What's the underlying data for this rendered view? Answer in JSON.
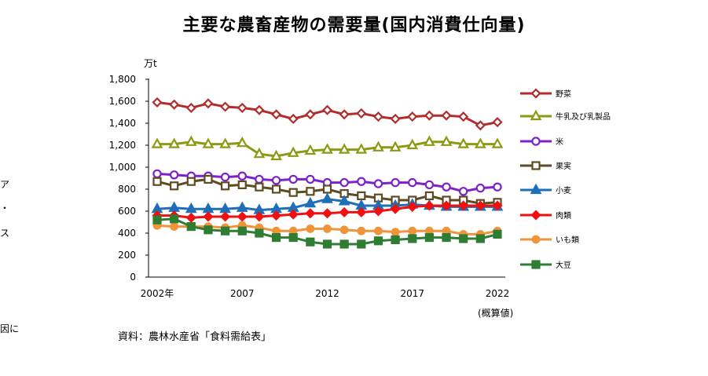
{
  "left_fragments": [
    "ア",
    "・",
    "ス",
    "因に"
  ],
  "chart_data": {
    "type": "line",
    "title": "主要な農畜産物の需要量(国内消費仕向量)",
    "ylabel": "万t",
    "ylim": [
      0,
      1800
    ],
    "yticks": [
      "0",
      "200",
      "400",
      "600",
      "800",
      "1,000",
      "1,200",
      "1,400",
      "1,600",
      "1,800"
    ],
    "x": [
      2002,
      2003,
      2004,
      2005,
      2006,
      2007,
      2008,
      2009,
      2010,
      2011,
      2012,
      2013,
      2014,
      2015,
      2016,
      2017,
      2018,
      2019,
      2020,
      2021,
      2022
    ],
    "xtick_labels": [
      "2002年",
      "2007",
      "2012",
      "2017",
      "2022"
    ],
    "x_note": "(概算値)",
    "grid": false,
    "legend": "right",
    "series": [
      {
        "name": "野菜",
        "color": "#B32B2B",
        "marker": "diamond",
        "filled": false,
        "values": [
          1590,
          1570,
          1540,
          1580,
          1550,
          1540,
          1520,
          1480,
          1440,
          1480,
          1520,
          1480,
          1490,
          1460,
          1440,
          1460,
          1470,
          1470,
          1460,
          1380,
          1410
        ]
      },
      {
        "name": "牛乳及び乳製品",
        "color": "#8A9A12",
        "marker": "triangle",
        "filled": false,
        "values": [
          1210,
          1210,
          1230,
          1210,
          1210,
          1220,
          1120,
          1100,
          1130,
          1150,
          1160,
          1160,
          1160,
          1180,
          1180,
          1200,
          1230,
          1230,
          1210,
          1210,
          1210
        ]
      },
      {
        "name": "米",
        "color": "#7B22C8",
        "marker": "circle",
        "filled": false,
        "values": [
          940,
          930,
          920,
          920,
          910,
          920,
          890,
          880,
          890,
          890,
          860,
          860,
          870,
          850,
          860,
          860,
          840,
          820,
          780,
          810,
          820
        ]
      },
      {
        "name": "果実",
        "color": "#5E4B22",
        "marker": "square",
        "filled": false,
        "values": [
          870,
          830,
          870,
          890,
          830,
          840,
          820,
          800,
          770,
          780,
          800,
          760,
          740,
          720,
          700,
          700,
          740,
          700,
          700,
          670,
          680
        ]
      },
      {
        "name": "小麦",
        "color": "#1E6FB8",
        "marker": "triangle",
        "filled": true,
        "values": [
          620,
          630,
          620,
          620,
          620,
          630,
          610,
          620,
          630,
          670,
          710,
          690,
          650,
          650,
          650,
          660,
          650,
          640,
          640,
          640,
          640
        ]
      },
      {
        "name": "肉類",
        "color": "#F01010",
        "marker": "diamond",
        "filled": true,
        "values": [
          560,
          560,
          540,
          550,
          550,
          550,
          550,
          560,
          570,
          580,
          580,
          590,
          590,
          600,
          620,
          640,
          650,
          650,
          650,
          650,
          650
        ]
      },
      {
        "name": "いも類",
        "color": "#F0943A",
        "marker": "circle",
        "filled": true,
        "values": [
          470,
          460,
          460,
          460,
          450,
          470,
          450,
          420,
          420,
          440,
          440,
          430,
          420,
          420,
          410,
          420,
          420,
          420,
          390,
          390,
          420
        ]
      },
      {
        "name": "大豆",
        "color": "#2E7D32",
        "marker": "square",
        "filled": true,
        "values": [
          520,
          530,
          460,
          430,
          420,
          420,
          400,
          360,
          360,
          320,
          300,
          300,
          300,
          330,
          340,
          350,
          360,
          360,
          350,
          350,
          390
        ]
      }
    ]
  },
  "source": "資料：農林水産省「食料需給表」"
}
